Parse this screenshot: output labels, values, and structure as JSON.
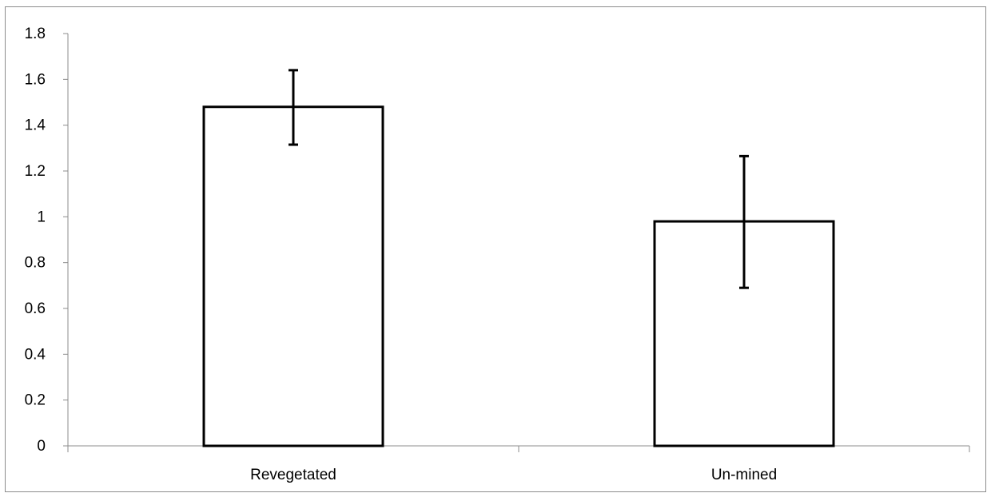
{
  "chart_data": {
    "type": "bar",
    "title": "",
    "xlabel": "",
    "ylabel": "",
    "categories": [
      "Revegetated",
      "Un-mined"
    ],
    "values": [
      1.48,
      0.98
    ],
    "error_upper": [
      1.64,
      1.265
    ],
    "error_lower": [
      1.315,
      0.69
    ],
    "ylim": [
      0,
      1.8
    ],
    "yticks": [
      0,
      0.2,
      0.4,
      0.6,
      0.8,
      1,
      1.2,
      1.4,
      1.6,
      1.8
    ],
    "ytick_labels": [
      "0",
      "0.2",
      "0.4",
      "0.6",
      "0.8",
      "1",
      "1.2",
      "1.4",
      "1.6",
      "1.8"
    ],
    "grid": false,
    "legend": "none",
    "bar_fill": "#ffffff",
    "bar_stroke": "#000000",
    "axis_color": "#8c8c8c"
  }
}
